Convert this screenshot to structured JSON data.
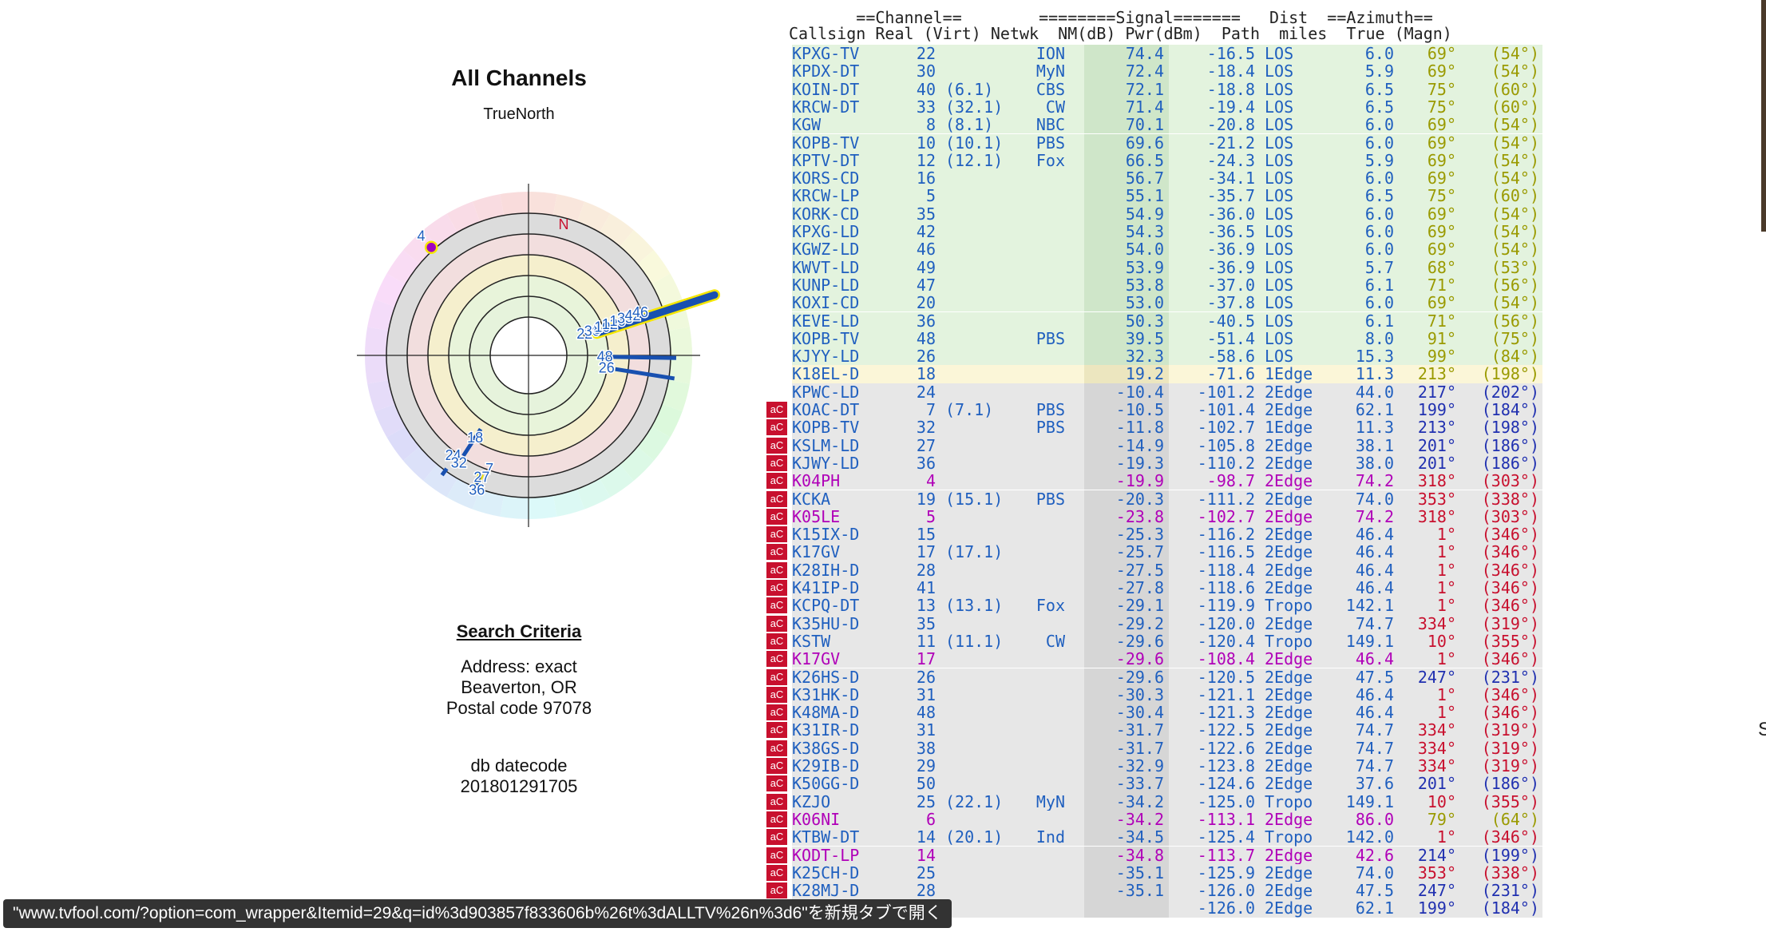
{
  "chart": {
    "title": "All Channels",
    "north_label": "TrueNorth",
    "n_marker": "N",
    "markers": [
      {
        "label": "4",
        "az": 318,
        "ring": 4.5
      },
      {
        "label": "22",
        "az": 69,
        "ring": 0.8
      },
      {
        "label": "30",
        "az": 69,
        "ring": 1.1
      },
      {
        "label": "8",
        "az": 69,
        "ring": 1.3
      },
      {
        "label": "10",
        "az": 69,
        "ring": 1.5
      },
      {
        "label": "12",
        "az": 69,
        "ring": 1.8
      },
      {
        "label": "16",
        "az": 69,
        "ring": 2.1
      },
      {
        "label": "35",
        "az": 69,
        "ring": 2.4
      },
      {
        "label": "42",
        "az": 69,
        "ring": 2.7
      },
      {
        "label": "46",
        "az": 69,
        "ring": 3.0
      },
      {
        "label": "48",
        "az": 91,
        "ring": 1.4
      },
      {
        "label": "26",
        "az": 99,
        "ring": 1.5
      },
      {
        "label": "18",
        "az": 213,
        "ring": 2.2
      },
      {
        "label": "24",
        "az": 217,
        "ring": 3.2
      },
      {
        "label": "32",
        "az": 213,
        "ring": 3.3
      },
      {
        "label": "7",
        "az": 199,
        "ring": 3.0
      },
      {
        "label": "27",
        "az": 201,
        "ring": 3.4
      },
      {
        "label": "36",
        "az": 201,
        "ring": 3.9
      }
    ]
  },
  "search": {
    "heading": "Search Criteria",
    "address": "Address: exact",
    "city": "Beaverton, OR",
    "postal": "Postal code 97078"
  },
  "db": {
    "label": "db datecode",
    "value": "201801291705"
  },
  "table": {
    "header_line1": "       ==Channel==        ========Signal=======   Dist  ==Azimuth==",
    "header_line2": "Callsign Real (Virt) Netwk  NM(dB) Pwr(dBm)  Path  miles  True (Magn)",
    "rows": [
      {
        "call": "KPXG-TV",
        "real": "22",
        "virt": "",
        "net": "ION",
        "nm": "74.4",
        "pwr": "-16.5",
        "path": "LOS",
        "dist": "6.0",
        "true": "69°",
        "magn": "(54°)",
        "badge": "",
        "zone": "green"
      },
      {
        "call": "KPDX-DT",
        "real": "30",
        "virt": "",
        "net": "MyN",
        "nm": "72.4",
        "pwr": "-18.4",
        "path": "LOS",
        "dist": "5.9",
        "true": "69°",
        "magn": "(54°)",
        "badge": "",
        "zone": "green"
      },
      {
        "call": "KOIN-DT",
        "real": "40",
        "virt": "(6.1)",
        "net": "CBS",
        "nm": "72.1",
        "pwr": "-18.8",
        "path": "LOS",
        "dist": "6.5",
        "true": "75°",
        "magn": "(60°)",
        "badge": "",
        "zone": "green"
      },
      {
        "call": "KRCW-DT",
        "real": "33",
        "virt": "(32.1)",
        "net": "CW",
        "nm": "71.4",
        "pwr": "-19.4",
        "path": "LOS",
        "dist": "6.5",
        "true": "75°",
        "magn": "(60°)",
        "badge": "",
        "zone": "green"
      },
      {
        "call": "KGW",
        "real": "8",
        "virt": "(8.1)",
        "net": "NBC",
        "nm": "70.1",
        "pwr": "-20.8",
        "path": "LOS",
        "dist": "6.0",
        "true": "69°",
        "magn": "(54°)",
        "badge": "",
        "zone": "green"
      },
      {
        "call": "KOPB-TV",
        "real": "10",
        "virt": "(10.1)",
        "net": "PBS",
        "nm": "69.6",
        "pwr": "-21.2",
        "path": "LOS",
        "dist": "6.0",
        "true": "69°",
        "magn": "(54°)",
        "badge": "",
        "zone": "green"
      },
      {
        "call": "KPTV-DT",
        "real": "12",
        "virt": "(12.1)",
        "net": "Fox",
        "nm": "66.5",
        "pwr": "-24.3",
        "path": "LOS",
        "dist": "5.9",
        "true": "69°",
        "magn": "(54°)",
        "badge": "",
        "zone": "green"
      },
      {
        "call": "KORS-CD",
        "real": "16",
        "virt": "",
        "net": "",
        "nm": "56.7",
        "pwr": "-34.1",
        "path": "LOS",
        "dist": "6.0",
        "true": "69°",
        "magn": "(54°)",
        "badge": "",
        "zone": "green"
      },
      {
        "call": "KRCW-LP",
        "real": "5",
        "virt": "",
        "net": "",
        "nm": "55.1",
        "pwr": "-35.7",
        "path": "LOS",
        "dist": "6.5",
        "true": "75°",
        "magn": "(60°)",
        "badge": "",
        "zone": "green"
      },
      {
        "call": "KORK-CD",
        "real": "35",
        "virt": "",
        "net": "",
        "nm": "54.9",
        "pwr": "-36.0",
        "path": "LOS",
        "dist": "6.0",
        "true": "69°",
        "magn": "(54°)",
        "badge": "",
        "zone": "green"
      },
      {
        "call": "KPXG-LD",
        "real": "42",
        "virt": "",
        "net": "",
        "nm": "54.3",
        "pwr": "-36.5",
        "path": "LOS",
        "dist": "6.0",
        "true": "69°",
        "magn": "(54°)",
        "badge": "",
        "zone": "green"
      },
      {
        "call": "KGWZ-LD",
        "real": "46",
        "virt": "",
        "net": "",
        "nm": "54.0",
        "pwr": "-36.9",
        "path": "LOS",
        "dist": "6.0",
        "true": "69°",
        "magn": "(54°)",
        "badge": "",
        "zone": "green"
      },
      {
        "call": "KWVT-LD",
        "real": "49",
        "virt": "",
        "net": "",
        "nm": "53.9",
        "pwr": "-36.9",
        "path": "LOS",
        "dist": "5.7",
        "true": "68°",
        "magn": "(53°)",
        "badge": "",
        "zone": "green"
      },
      {
        "call": "KUNP-LD",
        "real": "47",
        "virt": "",
        "net": "",
        "nm": "53.8",
        "pwr": "-37.0",
        "path": "LOS",
        "dist": "6.1",
        "true": "71°",
        "magn": "(56°)",
        "badge": "",
        "zone": "green"
      },
      {
        "call": "KOXI-CD",
        "real": "20",
        "virt": "",
        "net": "",
        "nm": "53.0",
        "pwr": "-37.8",
        "path": "LOS",
        "dist": "6.0",
        "true": "69°",
        "magn": "(54°)",
        "badge": "",
        "zone": "green"
      },
      {
        "call": "KEVE-LD",
        "real": "36",
        "virt": "",
        "net": "",
        "nm": "50.3",
        "pwr": "-40.5",
        "path": "LOS",
        "dist": "6.1",
        "true": "71°",
        "magn": "(56°)",
        "badge": "",
        "zone": "green"
      },
      {
        "call": "KOPB-TV",
        "real": "48",
        "virt": "",
        "net": "PBS",
        "nm": "39.5",
        "pwr": "-51.4",
        "path": "LOS",
        "dist": "8.0",
        "true": "91°",
        "magn": "(75°)",
        "badge": "",
        "zone": "green"
      },
      {
        "call": "KJYY-LD",
        "real": "26",
        "virt": "",
        "net": "",
        "nm": "32.3",
        "pwr": "-58.6",
        "path": "LOS",
        "dist": "15.3",
        "true": "99°",
        "magn": "(84°)",
        "badge": "",
        "zone": "green"
      },
      {
        "call": "K18EL-D",
        "real": "18",
        "virt": "",
        "net": "",
        "nm": "19.2",
        "pwr": "-71.6",
        "path": "1Edge",
        "dist": "11.3",
        "true": "213°",
        "magn": "(198°)",
        "badge": "",
        "zone": "yellow"
      },
      {
        "call": "KPWC-LD",
        "real": "24",
        "virt": "",
        "net": "",
        "nm": "-10.4",
        "pwr": "-101.2",
        "path": "2Edge",
        "dist": "44.0",
        "true": "217°",
        "magn": "(202°)",
        "badge": "",
        "zone": "gray"
      },
      {
        "call": "KOAC-DT",
        "real": "7",
        "virt": "(7.1)",
        "net": "PBS",
        "nm": "-10.5",
        "pwr": "-101.4",
        "path": "2Edge",
        "dist": "62.1",
        "true": "199°",
        "magn": "(184°)",
        "badge": "aC",
        "zone": "gray"
      },
      {
        "call": "KOPB-TV",
        "real": "32",
        "virt": "",
        "net": "PBS",
        "nm": "-11.8",
        "pwr": "-102.7",
        "path": "1Edge",
        "dist": "11.3",
        "true": "213°",
        "magn": "(198°)",
        "badge": "aC",
        "zone": "gray"
      },
      {
        "call": "KSLM-LD",
        "real": "27",
        "virt": "",
        "net": "",
        "nm": "-14.9",
        "pwr": "-105.8",
        "path": "2Edge",
        "dist": "38.1",
        "true": "201°",
        "magn": "(186°)",
        "badge": "aC",
        "zone": "gray"
      },
      {
        "call": "KJWY-LD",
        "real": "36",
        "virt": "",
        "net": "",
        "nm": "-19.3",
        "pwr": "-110.2",
        "path": "2Edge",
        "dist": "38.0",
        "true": "201°",
        "magn": "(186°)",
        "badge": "aC",
        "zone": "gray"
      },
      {
        "call": "K04PH",
        "real": "4",
        "virt": "",
        "net": "",
        "nm": "-19.9",
        "pwr": "-98.7",
        "path": "2Edge",
        "dist": "74.2",
        "true": "318°",
        "magn": "(303°)",
        "badge": "aC",
        "zone": "gray"
      },
      {
        "call": "KCKA",
        "real": "19",
        "virt": "(15.1)",
        "net": "PBS",
        "nm": "-20.3",
        "pwr": "-111.2",
        "path": "2Edge",
        "dist": "74.0",
        "true": "353°",
        "magn": "(338°)",
        "badge": "aC",
        "zone": "gray"
      },
      {
        "call": "K05LE",
        "real": "5",
        "virt": "",
        "net": "",
        "nm": "-23.8",
        "pwr": "-102.7",
        "path": "2Edge",
        "dist": "74.2",
        "true": "318°",
        "magn": "(303°)",
        "badge": "aC",
        "zone": "gray"
      },
      {
        "call": "K15IX-D",
        "real": "15",
        "virt": "",
        "net": "",
        "nm": "-25.3",
        "pwr": "-116.2",
        "path": "2Edge",
        "dist": "46.4",
        "true": "1°",
        "magn": "(346°)",
        "badge": "aC",
        "zone": "gray"
      },
      {
        "call": "K17GV",
        "real": "17",
        "virt": "(17.1)",
        "net": "",
        "nm": "-25.7",
        "pwr": "-116.5",
        "path": "2Edge",
        "dist": "46.4",
        "true": "1°",
        "magn": "(346°)",
        "badge": "aC",
        "zone": "gray"
      },
      {
        "call": "K28IH-D",
        "real": "28",
        "virt": "",
        "net": "",
        "nm": "-27.5",
        "pwr": "-118.4",
        "path": "2Edge",
        "dist": "46.4",
        "true": "1°",
        "magn": "(346°)",
        "badge": "aC",
        "zone": "gray"
      },
      {
        "call": "K41IP-D",
        "real": "41",
        "virt": "",
        "net": "",
        "nm": "-27.8",
        "pwr": "-118.6",
        "path": "2Edge",
        "dist": "46.4",
        "true": "1°",
        "magn": "(346°)",
        "badge": "aC",
        "zone": "gray"
      },
      {
        "call": "KCPQ-DT",
        "real": "13",
        "virt": "(13.1)",
        "net": "Fox",
        "nm": "-29.1",
        "pwr": "-119.9",
        "path": "Tropo",
        "dist": "142.1",
        "true": "1°",
        "magn": "(346°)",
        "badge": "aC",
        "zone": "gray"
      },
      {
        "call": "K35HU-D",
        "real": "35",
        "virt": "",
        "net": "",
        "nm": "-29.2",
        "pwr": "-120.0",
        "path": "2Edge",
        "dist": "74.7",
        "true": "334°",
        "magn": "(319°)",
        "badge": "aC",
        "zone": "gray"
      },
      {
        "call": "KSTW",
        "real": "11",
        "virt": "(11.1)",
        "net": "CW",
        "nm": "-29.6",
        "pwr": "-120.4",
        "path": "Tropo",
        "dist": "149.1",
        "true": "10°",
        "magn": "(355°)",
        "badge": "aC",
        "zone": "gray"
      },
      {
        "call": "K17GV",
        "real": "17",
        "virt": "",
        "net": "",
        "nm": "-29.6",
        "pwr": "-108.4",
        "path": "2Edge",
        "dist": "46.4",
        "true": "1°",
        "magn": "(346°)",
        "badge": "aC",
        "zone": "gray"
      },
      {
        "call": "K26HS-D",
        "real": "26",
        "virt": "",
        "net": "",
        "nm": "-29.6",
        "pwr": "-120.5",
        "path": "2Edge",
        "dist": "47.5",
        "true": "247°",
        "magn": "(231°)",
        "badge": "aC",
        "zone": "gray"
      },
      {
        "call": "K31HK-D",
        "real": "31",
        "virt": "",
        "net": "",
        "nm": "-30.3",
        "pwr": "-121.1",
        "path": "2Edge",
        "dist": "46.4",
        "true": "1°",
        "magn": "(346°)",
        "badge": "aC",
        "zone": "gray"
      },
      {
        "call": "K48MA-D",
        "real": "48",
        "virt": "",
        "net": "",
        "nm": "-30.4",
        "pwr": "-121.3",
        "path": "2Edge",
        "dist": "46.4",
        "true": "1°",
        "magn": "(346°)",
        "badge": "aC",
        "zone": "gray"
      },
      {
        "call": "K31IR-D",
        "real": "31",
        "virt": "",
        "net": "",
        "nm": "-31.7",
        "pwr": "-122.5",
        "path": "2Edge",
        "dist": "74.7",
        "true": "334°",
        "magn": "(319°)",
        "badge": "aC",
        "zone": "gray"
      },
      {
        "call": "K38GS-D",
        "real": "38",
        "virt": "",
        "net": "",
        "nm": "-31.7",
        "pwr": "-122.6",
        "path": "2Edge",
        "dist": "74.7",
        "true": "334°",
        "magn": "(319°)",
        "badge": "aC",
        "zone": "gray"
      },
      {
        "call": "K29IB-D",
        "real": "29",
        "virt": "",
        "net": "",
        "nm": "-32.9",
        "pwr": "-123.8",
        "path": "2Edge",
        "dist": "74.7",
        "true": "334°",
        "magn": "(319°)",
        "badge": "aC",
        "zone": "gray"
      },
      {
        "call": "K50GG-D",
        "real": "50",
        "virt": "",
        "net": "",
        "nm": "-33.7",
        "pwr": "-124.6",
        "path": "2Edge",
        "dist": "37.6",
        "true": "201°",
        "magn": "(186°)",
        "badge": "aC",
        "zone": "gray"
      },
      {
        "call": "KZJO",
        "real": "25",
        "virt": "(22.1)",
        "net": "MyN",
        "nm": "-34.2",
        "pwr": "-125.0",
        "path": "Tropo",
        "dist": "149.1",
        "true": "10°",
        "magn": "(355°)",
        "badge": "aC",
        "zone": "gray"
      },
      {
        "call": "K06NI",
        "real": "6",
        "virt": "",
        "net": "",
        "nm": "-34.2",
        "pwr": "-113.1",
        "path": "2Edge",
        "dist": "86.0",
        "true": "79°",
        "magn": "(64°)",
        "badge": "aC",
        "zone": "gray"
      },
      {
        "call": "KTBW-DT",
        "real": "14",
        "virt": "(20.1)",
        "net": "Ind",
        "nm": "-34.5",
        "pwr": "-125.4",
        "path": "Tropo",
        "dist": "142.0",
        "true": "1°",
        "magn": "(346°)",
        "badge": "aC",
        "zone": "gray"
      },
      {
        "call": "KODT-LP",
        "real": "14",
        "virt": "",
        "net": "",
        "nm": "-34.8",
        "pwr": "-113.7",
        "path": "2Edge",
        "dist": "42.6",
        "true": "214°",
        "magn": "(199°)",
        "badge": "aC",
        "zone": "gray"
      },
      {
        "call": "K25CH-D",
        "real": "25",
        "virt": "",
        "net": "",
        "nm": "-35.1",
        "pwr": "-125.9",
        "path": "2Edge",
        "dist": "74.0",
        "true": "353°",
        "magn": "(338°)",
        "badge": "aC",
        "zone": "gray"
      },
      {
        "call": "K28MJ-D",
        "real": "28",
        "virt": "",
        "net": "",
        "nm": "-35.1",
        "pwr": "-126.0",
        "path": "2Edge",
        "dist": "47.5",
        "true": "247°",
        "magn": "(231°)",
        "badge": "aC",
        "zone": "gray"
      },
      {
        "call": "",
        "real": "",
        "virt": "",
        "net": "",
        "nm": "",
        "pwr": "-126.0",
        "path": "2Edge",
        "dist": "62.1",
        "true": "199°",
        "magn": "(184°)",
        "badge": "aC",
        "zone": "gray"
      }
    ]
  },
  "status_bar": {
    "url_text": "\"www.tvfool.com/?option=com_wrapper&Itemid=29&q=id%3d903857f833606b%26t%3dALLTV%26n%3d6\"を新規タブで開く"
  },
  "right_edge": {
    "glyph": "S"
  },
  "colors": {
    "green_row": "#e3f3de",
    "yellow_row": "#fbf6d8",
    "gray_row": "#e7e7e7",
    "nm_green": "#cfe6c9",
    "nm_yellow": "#ece6bf",
    "nm_gray": "#d6d6d6",
    "blue_text": "#1f5fbf",
    "magenta_text": "#b000b8",
    "red_badge": "#c8102e"
  }
}
